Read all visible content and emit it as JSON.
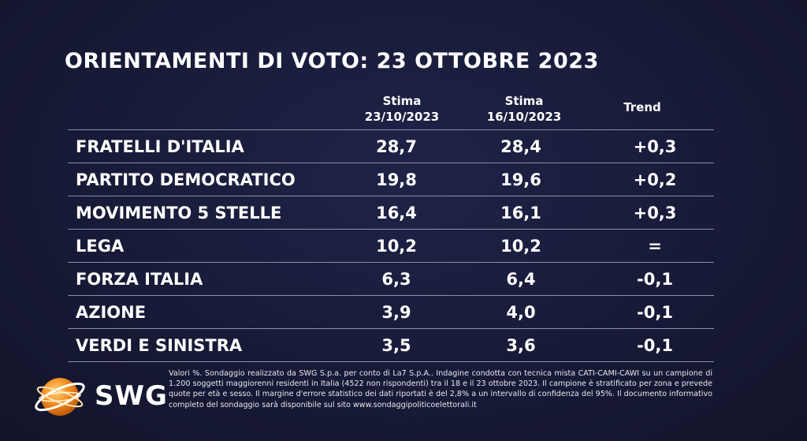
{
  "title": "ORIENTAMENTI DI VOTO: 23 OTTOBRE 2023",
  "columns": {
    "col1_line1": "Stima",
    "col1_line2": "23/10/2023",
    "col2_line1": "Stima",
    "col2_line2": "16/10/2023",
    "col3": "Trend"
  },
  "rows": [
    {
      "party": "FRATELLI D'ITALIA",
      "v1": "28,7",
      "v2": "28,4",
      "trend": "+0,3"
    },
    {
      "party": "PARTITO DEMOCRATICO",
      "v1": "19,8",
      "v2": "19,6",
      "trend": "+0,2"
    },
    {
      "party": "MOVIMENTO 5 STELLE",
      "v1": "16,4",
      "v2": "16,1",
      "trend": "+0,3"
    },
    {
      "party": "LEGA",
      "v1": "10,2",
      "v2": "10,2",
      "trend": "="
    },
    {
      "party": "FORZA ITALIA",
      "v1": "6,3",
      "v2": "6,4",
      "trend": "-0,1"
    },
    {
      "party": "AZIONE",
      "v1": "3,9",
      "v2": "4,0",
      "trend": "-0,1"
    },
    {
      "party": "VERDI E SINISTRA",
      "v1": "3,5",
      "v2": "3,6",
      "trend": "-0,1"
    }
  ],
  "logo": {
    "text": "SWG",
    "icon": "swg-globe-icon",
    "color": "#f28c1e"
  },
  "footnote": "Valori %. Sondaggio realizzato da SWG S.p.a. per conto di La7 S.p.A.. Indagine condotta con tecnica mista CATI-CAMI-CAWI su un campione di 1.200 soggetti maggiorenni residenti in Italia (4522 non rispondenti) tra il 18 e il 23 ottobre 2023. Il campione è stratificato per zona e prevede quote per età e sesso. Il margine d'errore statistico dei dati riportati è del 2,8% a un intervallo di confidenza del 95%. Il documento informativo completo del sondaggio sarà disponibile sul sito www.sondaggipoliticoelettorali.it"
}
